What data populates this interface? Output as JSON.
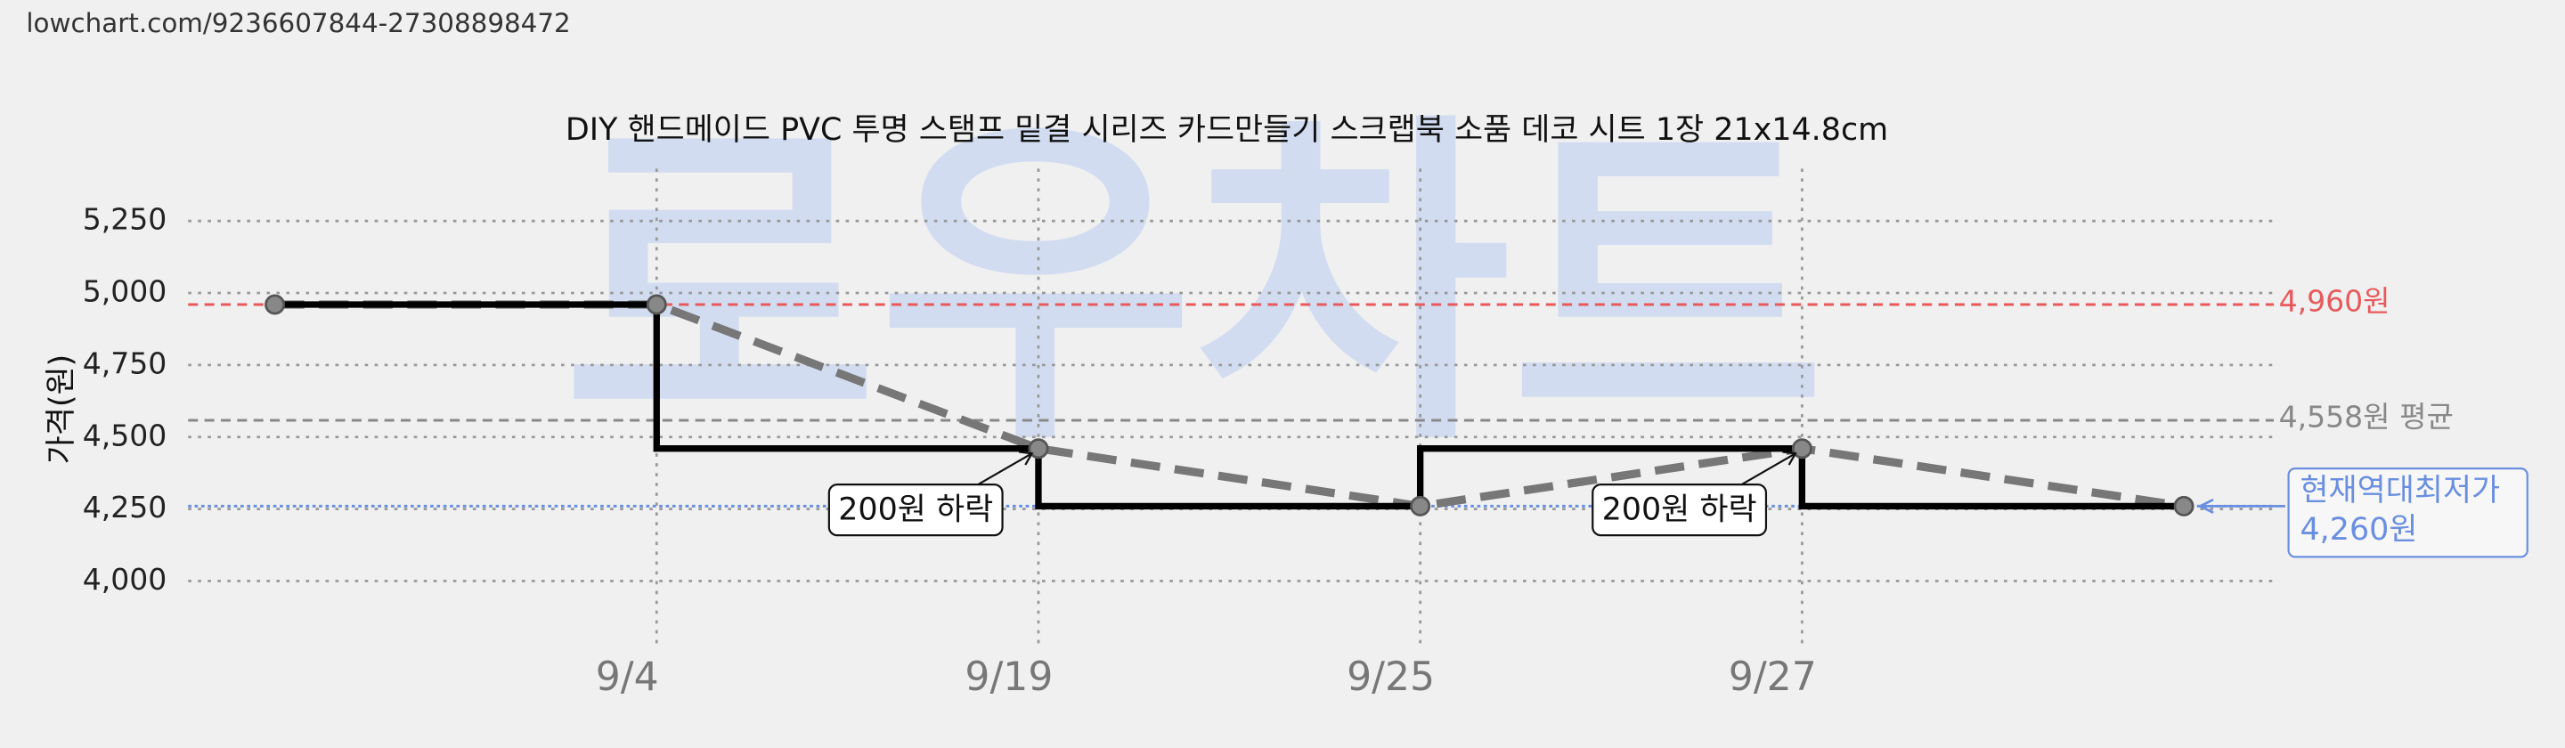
{
  "url": "lowchart.com/9236607844-27308898472",
  "chart_data": {
    "type": "step-line",
    "title": "DIY 핸드메이드 PVC 투명 스탬프 밑결 시리즈 카드만들기 스크랩북 소품 데코 시트 1장 21x14.8cm",
    "watermark": "로우차트",
    "y_label": "가격(원)",
    "categories": [
      null,
      "9/4",
      "9/19",
      "9/25",
      "9/27",
      null
    ],
    "values": [
      4960,
      4960,
      4460,
      4260,
      4460,
      4260
    ],
    "step_color": "#000000",
    "line_color": "#777777",
    "ylim": [
      3784,
      5432
    ],
    "yticks": [
      {
        "value": 4000,
        "label": "4,000"
      },
      {
        "value": 4250,
        "label": "4,250"
      },
      {
        "value": 4500,
        "label": "4,500"
      },
      {
        "value": 4750,
        "label": "4,750"
      },
      {
        "value": 5000,
        "label": "5,000"
      },
      {
        "value": 5250,
        "label": "5,250"
      }
    ],
    "grid": true,
    "ref_lines": [
      {
        "value": 4960,
        "label": "4,960원",
        "color": "#e8595c"
      },
      {
        "value": 4558,
        "label": "4,558원 평균",
        "color": "#888888"
      },
      {
        "value": 4260,
        "label": "4,260원",
        "title": "현재역대최저가",
        "color": "#6a8fe0"
      }
    ],
    "annotations": [
      {
        "text": "200원 하락",
        "category": "9/19"
      },
      {
        "text": "200원 하락",
        "category": "9/27"
      }
    ]
  }
}
